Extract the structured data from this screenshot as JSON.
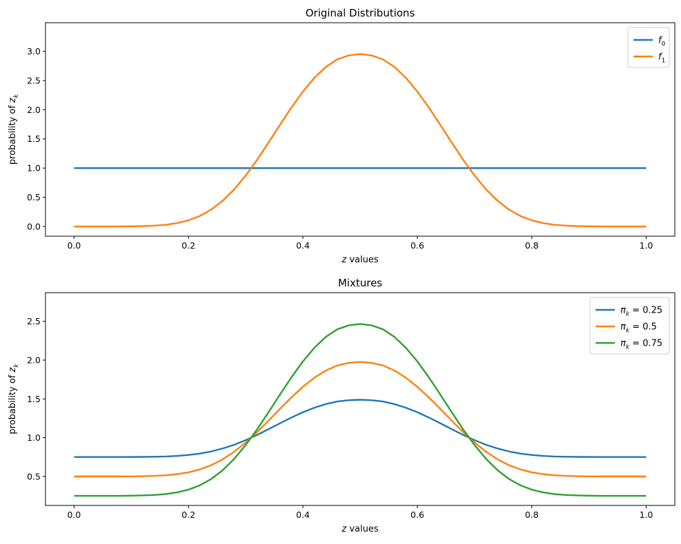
{
  "chart_data": [
    {
      "type": "line",
      "title": "Original Distributions",
      "xlabel": "z values",
      "ylabel": "probability of z_k",
      "xlim": [
        -0.05,
        1.05
      ],
      "ylim": [
        -0.166,
        3.49
      ],
      "x_ticks": [
        0.0,
        0.2,
        0.4,
        0.6,
        0.8,
        1.0
      ],
      "x_tick_labels": [
        "0.0",
        "0.2",
        "0.4",
        "0.6",
        "0.8",
        "1.0"
      ],
      "y_ticks": [
        0.0,
        0.5,
        1.0,
        1.5,
        2.0,
        2.5,
        3.0
      ],
      "y_tick_labels": [
        "0.0",
        "0.5",
        "1.0",
        "1.5",
        "2.0",
        "2.5",
        "3.0"
      ],
      "legend_position": "top-right",
      "grid": false,
      "x": [
        0.0,
        0.02,
        0.04,
        0.06,
        0.08,
        0.1,
        0.12,
        0.14,
        0.16,
        0.18,
        0.2,
        0.22,
        0.24,
        0.26,
        0.28,
        0.3,
        0.32,
        0.34,
        0.36,
        0.38,
        0.4,
        0.42,
        0.44,
        0.46,
        0.48,
        0.5,
        0.52,
        0.54,
        0.56,
        0.58,
        0.6,
        0.62,
        0.64,
        0.66,
        0.68,
        0.7,
        0.72,
        0.74,
        0.76,
        0.78,
        0.8,
        0.82,
        0.84,
        0.86,
        0.88,
        0.9,
        0.92,
        0.94,
        0.96,
        0.98,
        1.0
      ],
      "series": [
        {
          "name": "f_0",
          "color": "#1f77b4",
          "values": [
            1.0,
            1.0,
            1.0,
            1.0,
            1.0,
            1.0,
            1.0,
            1.0,
            1.0,
            1.0,
            1.0,
            1.0,
            1.0,
            1.0,
            1.0,
            1.0,
            1.0,
            1.0,
            1.0,
            1.0,
            1.0,
            1.0,
            1.0,
            1.0,
            1.0,
            1.0,
            1.0,
            1.0,
            1.0,
            1.0,
            1.0,
            1.0,
            1.0,
            1.0,
            1.0,
            1.0,
            1.0,
            1.0,
            1.0,
            1.0,
            1.0,
            1.0,
            1.0,
            1.0,
            1.0,
            1.0,
            1.0,
            1.0,
            1.0,
            1.0,
            1.0
          ]
        },
        {
          "name": "f_1",
          "color": "#ff7f0e",
          "values": [
            0.0,
            0.0,
            0.0,
            0.0,
            0.001,
            0.002,
            0.006,
            0.014,
            0.029,
            0.058,
            0.106,
            0.181,
            0.291,
            0.443,
            0.637,
            0.873,
            1.144,
            1.439,
            1.743,
            2.039,
            2.311,
            2.545,
            2.732,
            2.862,
            2.93,
            2.954,
            2.93,
            2.862,
            2.732,
            2.545,
            2.311,
            2.039,
            1.743,
            1.439,
            1.144,
            0.873,
            0.637,
            0.443,
            0.291,
            0.181,
            0.106,
            0.058,
            0.029,
            0.014,
            0.006,
            0.002,
            0.001,
            0.0,
            0.0,
            0.0,
            0.0
          ]
        }
      ]
    },
    {
      "type": "line",
      "title": "Mixtures",
      "xlabel": "z values",
      "ylabel": "probability of z_k",
      "xlim": [
        -0.05,
        1.05
      ],
      "ylim": [
        0.126,
        2.87
      ],
      "x_ticks": [
        0.0,
        0.2,
        0.4,
        0.6,
        0.8,
        1.0
      ],
      "x_tick_labels": [
        "0.0",
        "0.2",
        "0.4",
        "0.6",
        "0.8",
        "1.0"
      ],
      "y_ticks": [
        0.5,
        1.0,
        1.5,
        2.0,
        2.5
      ],
      "y_tick_labels": [
        "0.5",
        "1.0",
        "1.5",
        "2.0",
        "2.5"
      ],
      "legend_position": "top-right",
      "grid": false,
      "x": [
        0.0,
        0.02,
        0.04,
        0.06,
        0.08,
        0.1,
        0.12,
        0.14,
        0.16,
        0.18,
        0.2,
        0.22,
        0.24,
        0.26,
        0.28,
        0.3,
        0.32,
        0.34,
        0.36,
        0.38,
        0.4,
        0.42,
        0.44,
        0.46,
        0.48,
        0.5,
        0.52,
        0.54,
        0.56,
        0.58,
        0.6,
        0.62,
        0.64,
        0.66,
        0.68,
        0.7,
        0.72,
        0.74,
        0.76,
        0.78,
        0.8,
        0.82,
        0.84,
        0.86,
        0.88,
        0.9,
        0.92,
        0.94,
        0.96,
        0.98,
        1.0
      ],
      "series": [
        {
          "name": "π_k = 0.25",
          "color": "#1f77b4",
          "values": [
            0.75,
            0.75,
            0.75,
            0.75,
            0.75,
            0.751,
            0.752,
            0.754,
            0.757,
            0.765,
            0.777,
            0.795,
            0.823,
            0.861,
            0.909,
            0.968,
            1.036,
            1.11,
            1.186,
            1.26,
            1.328,
            1.386,
            1.433,
            1.466,
            1.483,
            1.489,
            1.483,
            1.466,
            1.433,
            1.386,
            1.328,
            1.26,
            1.186,
            1.11,
            1.036,
            0.968,
            0.909,
            0.861,
            0.823,
            0.795,
            0.777,
            0.765,
            0.757,
            0.754,
            0.752,
            0.751,
            0.75,
            0.75,
            0.75,
            0.75,
            0.75
          ]
        },
        {
          "name": "π_k = 0.5",
          "color": "#ff7f0e",
          "values": [
            0.5,
            0.5,
            0.5,
            0.5,
            0.5,
            0.501,
            0.503,
            0.507,
            0.515,
            0.529,
            0.553,
            0.591,
            0.646,
            0.722,
            0.819,
            0.937,
            1.072,
            1.22,
            1.372,
            1.52,
            1.656,
            1.773,
            1.866,
            1.931,
            1.965,
            1.977,
            1.965,
            1.931,
            1.866,
            1.773,
            1.656,
            1.52,
            1.372,
            1.22,
            1.072,
            0.937,
            0.819,
            0.722,
            0.646,
            0.591,
            0.553,
            0.529,
            0.515,
            0.507,
            0.503,
            0.501,
            0.5,
            0.5,
            0.5,
            0.5,
            0.5
          ]
        },
        {
          "name": "π_k = 0.75",
          "color": "#2ca02c",
          "values": [
            0.25,
            0.25,
            0.25,
            0.25,
            0.25,
            0.252,
            0.255,
            0.261,
            0.272,
            0.294,
            0.33,
            0.386,
            0.468,
            0.582,
            0.728,
            0.905,
            1.108,
            1.329,
            1.557,
            1.779,
            1.983,
            2.159,
            2.299,
            2.397,
            2.448,
            2.466,
            2.448,
            2.397,
            2.299,
            2.159,
            1.983,
            1.779,
            1.557,
            1.329,
            1.108,
            0.905,
            0.728,
            0.582,
            0.468,
            0.386,
            0.33,
            0.294,
            0.272,
            0.261,
            0.255,
            0.252,
            0.25,
            0.25,
            0.25,
            0.25,
            0.25
          ]
        }
      ]
    }
  ]
}
